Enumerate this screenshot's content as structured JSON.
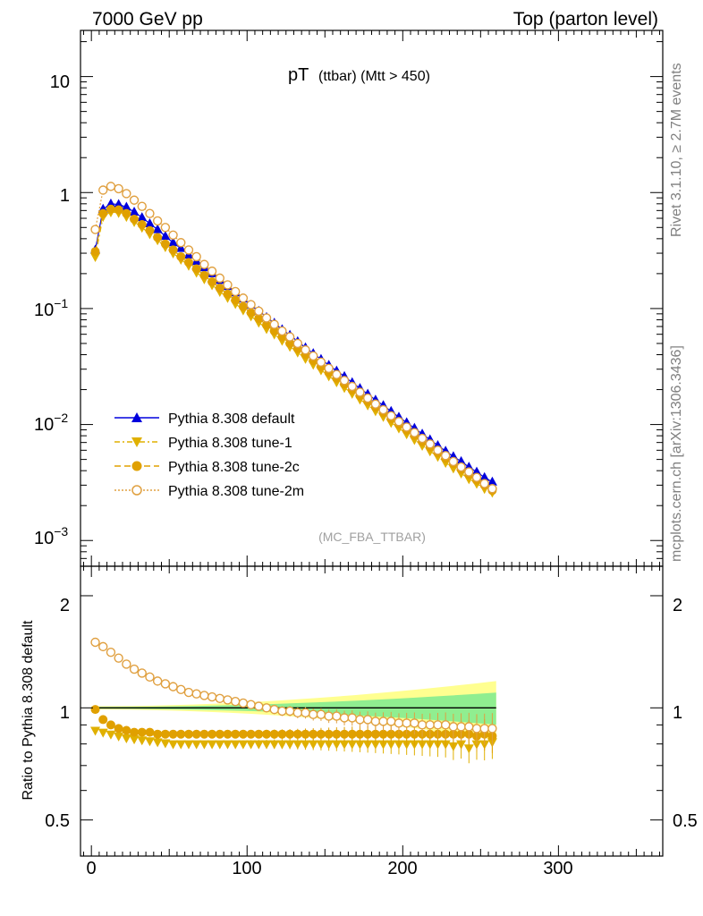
{
  "header": {
    "left": "7000 GeV pp",
    "right": "Top (parton level)"
  },
  "plot_title": {
    "main": "pT",
    "sub": "(ttbar) (Mtt > 450)"
  },
  "watermark": "(MC_FBA_TTBAR)",
  "side_labels": {
    "rivet": "Rivet 3.1.10, ≥ 2.7M events",
    "mcplots": "mcplots.cern.ch [arXiv:1306.3436]"
  },
  "ratio_ylabel": "Ratio to Pythia 8.308 default",
  "top_yticks": [
    {
      "base": "10",
      "exp": ""
    },
    {
      "base": "1",
      "exp": ""
    },
    {
      "base": "10",
      "exp": "−1"
    },
    {
      "base": "10",
      "exp": "−2"
    },
    {
      "base": "10",
      "exp": "−3"
    }
  ],
  "ratio_yticks": [
    "2",
    "1",
    "0.5"
  ],
  "xticks": [
    "0",
    "100",
    "200",
    "300"
  ],
  "legend": [
    "Pythia 8.308 default",
    "Pythia 8.308 tune-1",
    "Pythia 8.308 tune-2c",
    "Pythia 8.308 tune-2m"
  ],
  "colors": {
    "default": "#0000dd",
    "tune1": "#e0b000",
    "tune2c": "#e0a000",
    "tune2m": "#e0a040",
    "band_inner": "#90ee90",
    "band_outer": "#ffff90"
  },
  "chart_data": {
    "type": "line",
    "x_range": [
      -7,
      367
    ],
    "y_range_main": [
      0.0006,
      25
    ],
    "y_scale_main": "log",
    "y_range_ratio": [
      0.4,
      2.4
    ],
    "y_scale_ratio": "log",
    "x_bin_width": 5,
    "main_series": [
      {
        "name": "Pythia 8.308 default",
        "values": [
          0.32,
          0.72,
          0.8,
          0.79,
          0.75,
          0.68,
          0.61,
          0.54,
          0.48,
          0.42,
          0.37,
          0.33,
          0.29,
          0.255,
          0.225,
          0.2,
          0.175,
          0.155,
          0.137,
          0.121,
          0.107,
          0.095,
          0.084,
          0.075,
          0.066,
          0.059,
          0.052,
          0.046,
          0.041,
          0.0365,
          0.0325,
          0.029,
          0.026,
          0.023,
          0.0205,
          0.0183,
          0.0163,
          0.0146,
          0.013,
          0.0116,
          0.0104,
          0.0093,
          0.0083,
          0.0074,
          0.0066,
          0.0059,
          0.0053,
          0.0048,
          0.0043,
          0.0039,
          0.0035,
          0.0032
        ]
      },
      {
        "name": "Pythia 8.308 tune-1",
        "values": [
          0.28,
          0.62,
          0.68,
          0.67,
          0.62,
          0.56,
          0.5,
          0.44,
          0.39,
          0.34,
          0.3,
          0.265,
          0.235,
          0.205,
          0.18,
          0.16,
          0.14,
          0.124,
          0.11,
          0.097,
          0.086,
          0.076,
          0.067,
          0.06,
          0.053,
          0.047,
          0.042,
          0.037,
          0.033,
          0.0295,
          0.0262,
          0.0233,
          0.0208,
          0.0185,
          0.0165,
          0.0147,
          0.0131,
          0.0117,
          0.0104,
          0.0093,
          0.0083,
          0.0074,
          0.0066,
          0.0059,
          0.0053,
          0.0047,
          0.0042,
          0.0038,
          0.0034,
          0.0031,
          0.0028,
          0.0026
        ]
      },
      {
        "name": "Pythia 8.308 tune-2c",
        "values": [
          0.31,
          0.66,
          0.72,
          0.71,
          0.66,
          0.59,
          0.53,
          0.47,
          0.41,
          0.36,
          0.32,
          0.28,
          0.25,
          0.22,
          0.193,
          0.17,
          0.15,
          0.133,
          0.118,
          0.104,
          0.092,
          0.082,
          0.072,
          0.064,
          0.057,
          0.05,
          0.045,
          0.04,
          0.0355,
          0.0315,
          0.028,
          0.025,
          0.0223,
          0.0198,
          0.0177,
          0.0158,
          0.0141,
          0.0126,
          0.0112,
          0.01,
          0.0089,
          0.008,
          0.0071,
          0.0064,
          0.0057,
          0.0051,
          0.0046,
          0.0041,
          0.0037,
          0.0033,
          0.003,
          0.0027
        ]
      },
      {
        "name": "Pythia 8.308 tune-2m",
        "values": [
          0.48,
          1.05,
          1.13,
          1.08,
          0.98,
          0.86,
          0.76,
          0.66,
          0.57,
          0.5,
          0.43,
          0.37,
          0.32,
          0.28,
          0.24,
          0.21,
          0.183,
          0.16,
          0.14,
          0.123,
          0.108,
          0.095,
          0.083,
          0.073,
          0.064,
          0.057,
          0.05,
          0.044,
          0.039,
          0.0345,
          0.0305,
          0.027,
          0.024,
          0.0213,
          0.019,
          0.0169,
          0.015,
          0.0134,
          0.0119,
          0.0106,
          0.0095,
          0.0085,
          0.0076,
          0.0068,
          0.006,
          0.0054,
          0.0048,
          0.0043,
          0.0039,
          0.0035,
          0.0031,
          0.0028
        ]
      }
    ],
    "ratio_series": [
      {
        "name": "Pythia 8.308 tune-1",
        "values": [
          0.87,
          0.86,
          0.85,
          0.84,
          0.83,
          0.825,
          0.82,
          0.815,
          0.81,
          0.805,
          0.8,
          0.8,
          0.8,
          0.8,
          0.8,
          0.8,
          0.8,
          0.8,
          0.8,
          0.8,
          0.8,
          0.8,
          0.8,
          0.8,
          0.8,
          0.8,
          0.8,
          0.8,
          0.8,
          0.8,
          0.8,
          0.8,
          0.8,
          0.8,
          0.8,
          0.8,
          0.8,
          0.8,
          0.8,
          0.8,
          0.8,
          0.8,
          0.8,
          0.8,
          0.8,
          0.8,
          0.79,
          0.8,
          0.78,
          0.8,
          0.8,
          0.81
        ]
      },
      {
        "name": "Pythia 8.308 tune-2c",
        "values": [
          0.99,
          0.93,
          0.9,
          0.88,
          0.87,
          0.86,
          0.86,
          0.86,
          0.85,
          0.85,
          0.85,
          0.85,
          0.85,
          0.85,
          0.85,
          0.85,
          0.85,
          0.85,
          0.85,
          0.85,
          0.85,
          0.85,
          0.85,
          0.85,
          0.85,
          0.85,
          0.85,
          0.85,
          0.85,
          0.85,
          0.85,
          0.85,
          0.85,
          0.85,
          0.85,
          0.85,
          0.85,
          0.85,
          0.85,
          0.85,
          0.85,
          0.85,
          0.85,
          0.85,
          0.85,
          0.85,
          0.85,
          0.85,
          0.85,
          0.84,
          0.85,
          0.84
        ]
      },
      {
        "name": "Pythia 8.308 tune-2m",
        "values": [
          1.5,
          1.46,
          1.41,
          1.36,
          1.31,
          1.27,
          1.24,
          1.21,
          1.18,
          1.16,
          1.14,
          1.12,
          1.1,
          1.09,
          1.08,
          1.07,
          1.06,
          1.05,
          1.04,
          1.03,
          1.02,
          1.01,
          1.0,
          0.99,
          0.98,
          0.98,
          0.97,
          0.97,
          0.96,
          0.96,
          0.95,
          0.95,
          0.94,
          0.94,
          0.93,
          0.93,
          0.92,
          0.92,
          0.92,
          0.91,
          0.91,
          0.91,
          0.9,
          0.9,
          0.9,
          0.9,
          0.89,
          0.89,
          0.89,
          0.88,
          0.88,
          0.88
        ]
      }
    ]
  }
}
